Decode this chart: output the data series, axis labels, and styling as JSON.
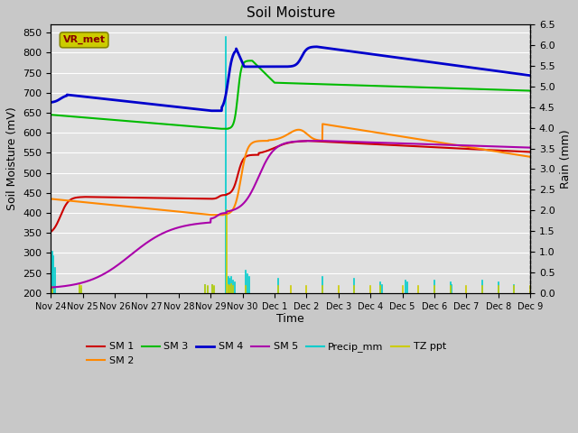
{
  "title": "Soil Moisture",
  "xlabel": "Time",
  "ylabel_left": "Soil Moisture (mV)",
  "ylabel_right": "Rain (mm)",
  "ylim_left": [
    200,
    870
  ],
  "ylim_right": [
    0.0,
    6.5
  ],
  "yticks_left": [
    200,
    250,
    300,
    350,
    400,
    450,
    500,
    550,
    600,
    650,
    700,
    750,
    800,
    850
  ],
  "yticks_right": [
    0.0,
    0.5,
    1.0,
    1.5,
    2.0,
    2.5,
    3.0,
    3.5,
    4.0,
    4.5,
    5.0,
    5.5,
    6.0,
    6.5
  ],
  "xtick_labels": [
    "Nov 24",
    "Nov 25",
    "Nov 26",
    "Nov 27",
    "Nov 28",
    "Nov 29",
    "Nov 30",
    "Dec 1",
    "Dec 2",
    "Dec 3",
    "Dec 4",
    "Dec 5",
    "Dec 6",
    "Dec 7",
    "Dec 8",
    "Dec 9"
  ],
  "colors": {
    "SM1": "#cc0000",
    "SM2": "#ff8800",
    "SM3": "#00bb00",
    "SM4": "#0000cc",
    "SM5": "#aa00aa",
    "Precip_mm": "#00cccc",
    "TZ_ppt": "#cccc00"
  },
  "fig_facecolor": "#c8c8c8",
  "axes_facecolor": "#e0e0e0",
  "grid_color": "#ffffff",
  "vr_met_box_facecolor": "#cccc00",
  "vr_met_box_edgecolor": "#888800",
  "vr_met_text_color": "#880000"
}
